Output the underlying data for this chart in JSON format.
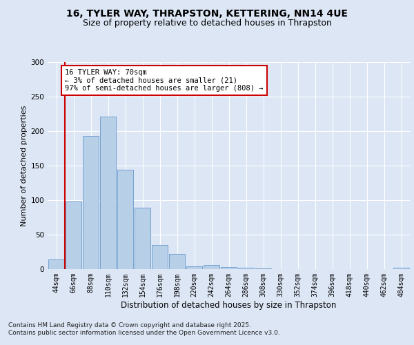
{
  "title_line1": "16, TYLER WAY, THRAPSTON, KETTERING, NN14 4UE",
  "title_line2": "Size of property relative to detached houses in Thrapston",
  "xlabel": "Distribution of detached houses by size in Thrapston",
  "ylabel": "Number of detached properties",
  "categories": [
    "44sqm",
    "66sqm",
    "88sqm",
    "110sqm",
    "132sqm",
    "154sqm",
    "176sqm",
    "198sqm",
    "220sqm",
    "242sqm",
    "264sqm",
    "286sqm",
    "308sqm",
    "330sqm",
    "352sqm",
    "374sqm",
    "396sqm",
    "418sqm",
    "440sqm",
    "462sqm",
    "484sqm"
  ],
  "values": [
    14,
    98,
    193,
    221,
    144,
    89,
    35,
    22,
    4,
    6,
    3,
    2,
    1,
    0,
    0,
    0,
    0,
    0,
    0,
    0,
    2
  ],
  "bar_color": "#b8cfe8",
  "bar_edge_color": "#6699cc",
  "vline_color": "#cc0000",
  "annotation_text": "16 TYLER WAY: 70sqm\n← 3% of detached houses are smaller (21)\n97% of semi-detached houses are larger (808) →",
  "annotation_box_color": "#ffffff",
  "annotation_box_edge_color": "#cc0000",
  "ylim": [
    0,
    300
  ],
  "yticks": [
    0,
    50,
    100,
    150,
    200,
    250,
    300
  ],
  "footer_text": "Contains HM Land Registry data © Crown copyright and database right 2025.\nContains public sector information licensed under the Open Government Licence v3.0.",
  "background_color": "#dce6f5",
  "axes_background_color": "#dce6f5",
  "grid_color": "#ffffff",
  "title_fontsize": 10,
  "subtitle_fontsize": 9,
  "tick_fontsize": 7,
  "ylabel_fontsize": 8,
  "xlabel_fontsize": 8.5,
  "footer_fontsize": 6.5,
  "ann_fontsize": 7.5
}
